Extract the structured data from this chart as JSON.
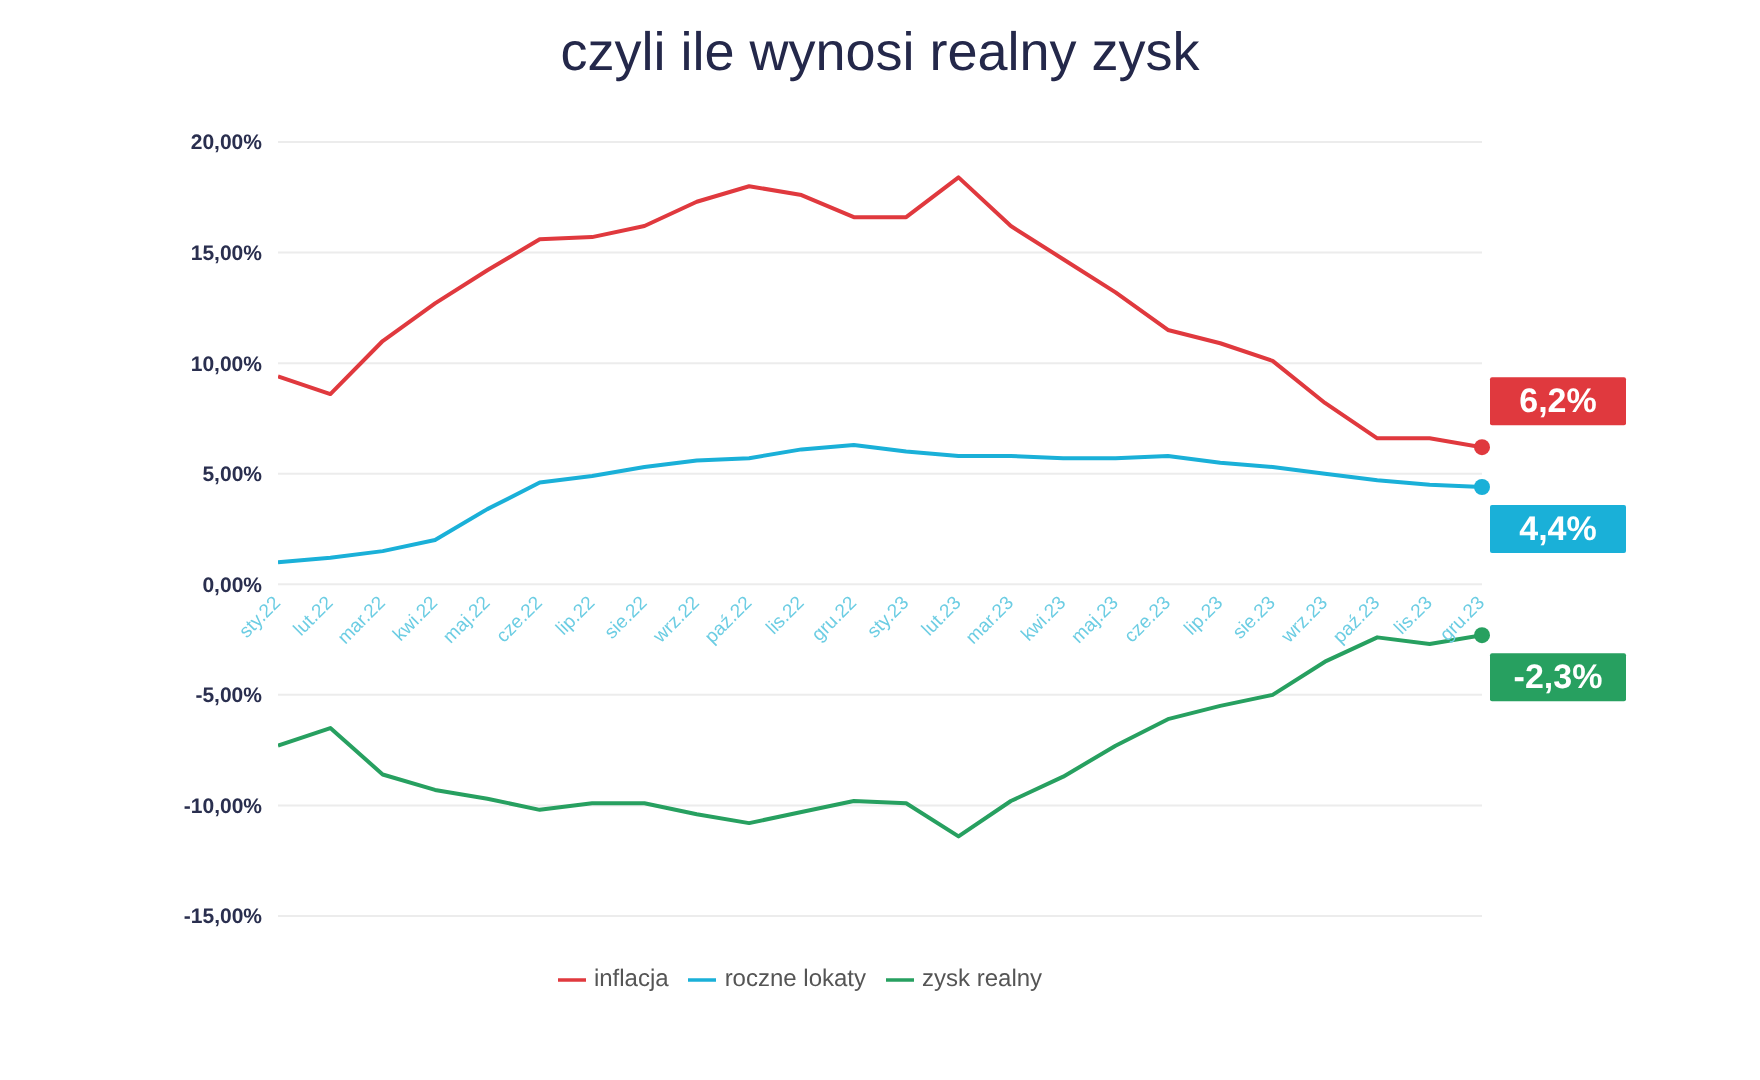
{
  "chart_data": {
    "type": "line",
    "title": "czyli ile wynosi realny zysk",
    "categories": [
      "sty.22",
      "lut.22",
      "mar.22",
      "kwi.22",
      "maj.22",
      "cze.22",
      "lip.22",
      "sie.22",
      "wrz.22",
      "paź.22",
      "lis.22",
      "gru.22",
      "sty.23",
      "lut.23",
      "mar.23",
      "kwi.23",
      "maj.23",
      "cze.23",
      "lip.23",
      "sie.23",
      "wrz.23",
      "paź.23",
      "lis.23",
      "gru.23"
    ],
    "series": [
      {
        "name": "roczne lokaty",
        "color": "#1ab0d8",
        "values": [
          1.0,
          1.2,
          1.5,
          2.0,
          3.4,
          4.6,
          4.9,
          5.3,
          5.6,
          5.7,
          6.1,
          6.3,
          6.0,
          5.8,
          5.8,
          5.7,
          5.7,
          5.8,
          5.5,
          5.3,
          5.0,
          4.7,
          4.5,
          4.4
        ]
      },
      {
        "name": "inflacja",
        "color": "#e0393e",
        "values": [
          9.4,
          8.6,
          11.0,
          12.7,
          14.2,
          15.6,
          15.7,
          16.2,
          17.3,
          18.0,
          17.6,
          16.6,
          16.6,
          18.4,
          16.2,
          14.7,
          13.2,
          11.5,
          10.9,
          10.1,
          8.2,
          6.6,
          6.6,
          6.2
        ]
      },
      {
        "name": "zysk realny",
        "color": "#27a060",
        "values": [
          -7.3,
          -6.5,
          -8.6,
          -9.3,
          -9.7,
          -10.2,
          -9.9,
          -9.9,
          -10.4,
          -10.8,
          -10.3,
          -9.8,
          -9.9,
          -11.4,
          -9.8,
          -8.7,
          -7.3,
          -6.1,
          -5.5,
          -5.0,
          -3.5,
          -2.4,
          -2.7,
          -2.3
        ]
      }
    ],
    "ylim": [
      -15,
      20
    ],
    "yticks": [
      {
        "value": -15,
        "label": "-15,00%"
      },
      {
        "value": -10,
        "label": "-10,00%"
      },
      {
        "value": -5,
        "label": "-5,00%"
      },
      {
        "value": 0,
        "label": "0,00%"
      },
      {
        "value": 5,
        "label": "5,00%"
      },
      {
        "value": 10,
        "label": "10,00%"
      },
      {
        "value": 15,
        "label": "15,00%"
      },
      {
        "value": 20,
        "label": "20,00%"
      }
    ],
    "grid": "y",
    "legend": "bottom",
    "marker": "none",
    "line_style": "solid",
    "annotations": [
      {
        "text": "4,4%",
        "x": "gru.23",
        "y": 4.4
      },
      {
        "text": "6,2%",
        "x": "gru.23",
        "y": 6.2
      },
      {
        "text": "-2,3%",
        "x": "gru.23",
        "y": -2.3
      }
    ]
  }
}
